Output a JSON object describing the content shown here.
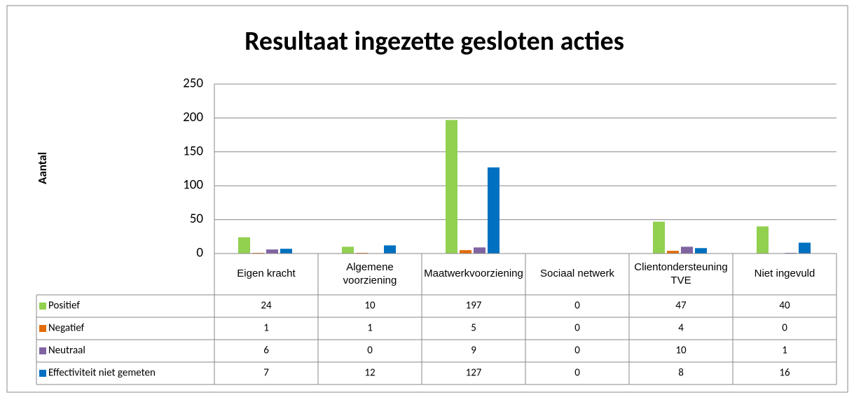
{
  "chart_data": {
    "type": "bar",
    "title": "Resultaat ingezette gesloten acties",
    "y_label": "Aantal",
    "categories": [
      "Eigen kracht",
      "Algemene voorziening",
      "Maatwerkvoorziening",
      "Sociaal netwerk",
      "Clientondersteuning TVE",
      "Niet ingevuld"
    ],
    "series": [
      {
        "name": "Positief",
        "color": "#92d050",
        "values": [
          24,
          10,
          197,
          0,
          47,
          40
        ]
      },
      {
        "name": "Negatief",
        "color": "#e36c09",
        "values": [
          1,
          1,
          5,
          0,
          4,
          0
        ]
      },
      {
        "name": "Neutraal",
        "color": "#8064a2",
        "values": [
          6,
          0,
          9,
          0,
          10,
          1
        ]
      },
      {
        "name": "Effectiviteit niet gemeten",
        "color": "#0070c0",
        "values": [
          7,
          12,
          127,
          0,
          8,
          16
        ]
      }
    ],
    "ylim": [
      0,
      250
    ],
    "yticks": [
      0,
      50,
      100,
      150,
      200,
      250
    ],
    "grid": true,
    "data_table": true
  }
}
